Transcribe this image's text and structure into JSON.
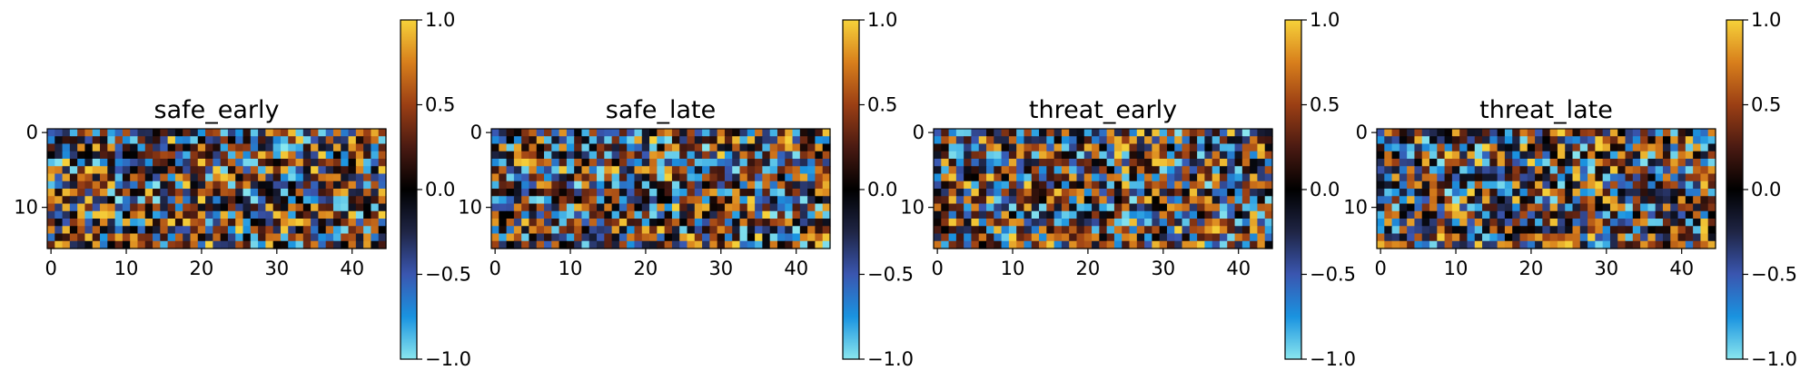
{
  "chart_data": [
    {
      "type": "heatmap",
      "title": "safe_early",
      "rows": 16,
      "cols": 45,
      "x_ticks": [
        0,
        10,
        20,
        30,
        40
      ],
      "y_ticks": [
        0,
        10
      ],
      "colorbar": {
        "min": -1.0,
        "max": 1.0,
        "ticks": [
          "−1.0",
          "−0.5",
          "0.0",
          "0.5",
          "1.0"
        ]
      },
      "seed": 11
    },
    {
      "type": "heatmap",
      "title": "safe_late",
      "rows": 16,
      "cols": 45,
      "x_ticks": [
        0,
        10,
        20,
        30,
        40
      ],
      "y_ticks": [
        0,
        10
      ],
      "colorbar": {
        "min": -1.0,
        "max": 1.0,
        "ticks": [
          "−1.0",
          "−0.5",
          "0.0",
          "0.5",
          "1.0"
        ]
      },
      "seed": 23
    },
    {
      "type": "heatmap",
      "title": "threat_early",
      "rows": 16,
      "cols": 45,
      "x_ticks": [
        0,
        10,
        20,
        30,
        40
      ],
      "y_ticks": [
        0,
        10
      ],
      "colorbar": {
        "min": -1.0,
        "max": 1.0,
        "ticks": [
          "−1.0",
          "−0.5",
          "0.0",
          "0.5",
          "1.0"
        ]
      },
      "seed": 37
    },
    {
      "type": "heatmap",
      "title": "threat_late",
      "rows": 16,
      "cols": 45,
      "x_ticks": [
        0,
        10,
        20,
        30,
        40
      ],
      "y_ticks": [
        0,
        10
      ],
      "colorbar": {
        "min": -1.0,
        "max": 1.0,
        "ticks": [
          "−1.0",
          "−0.5",
          "0.0",
          "0.5",
          "1.0"
        ]
      },
      "seed": 51
    }
  ],
  "colormap": [
    "#8ae6ee",
    "#1a93e0",
    "#3a56b0",
    "#1f2545",
    "#000000",
    "#4a1a12",
    "#9b3f14",
    "#d87f1c",
    "#f6d23a"
  ]
}
